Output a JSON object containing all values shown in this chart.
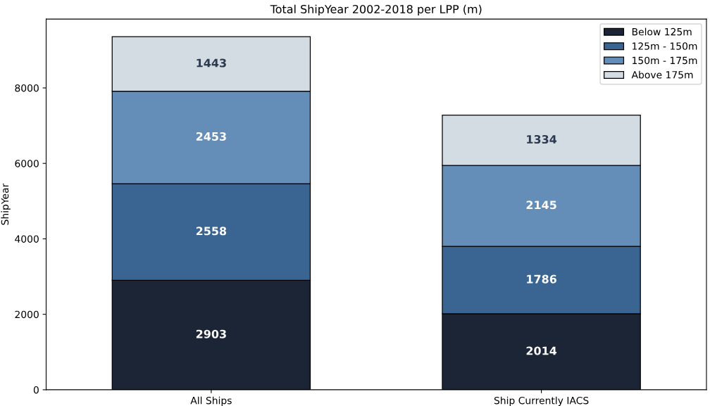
{
  "chart_data": {
    "type": "bar",
    "title": "Total ShipYear 2002-2018 per LPP (m)",
    "ylabel": "ShipYear",
    "categories": [
      "All Ships",
      "Ship Currently IACS"
    ],
    "stacked": true,
    "series": [
      {
        "name": "Below 125m",
        "color": "#1c2536",
        "values": [
          2903,
          2014
        ]
      },
      {
        "name": "125m - 150m",
        "color": "#3a6491",
        "values": [
          2558,
          1786
        ]
      },
      {
        "name": "150m - 175m",
        "color": "#648db8",
        "values": [
          2453,
          2145
        ]
      },
      {
        "name": "Above 175m",
        "color": "#d3dbe3",
        "values": [
          1443,
          1334
        ]
      }
    ],
    "ylim": [
      0,
      9825
    ],
    "yticks": [
      0,
      2000,
      4000,
      6000,
      8000
    ],
    "data_labels": true,
    "legend": "top right",
    "grid": false
  }
}
